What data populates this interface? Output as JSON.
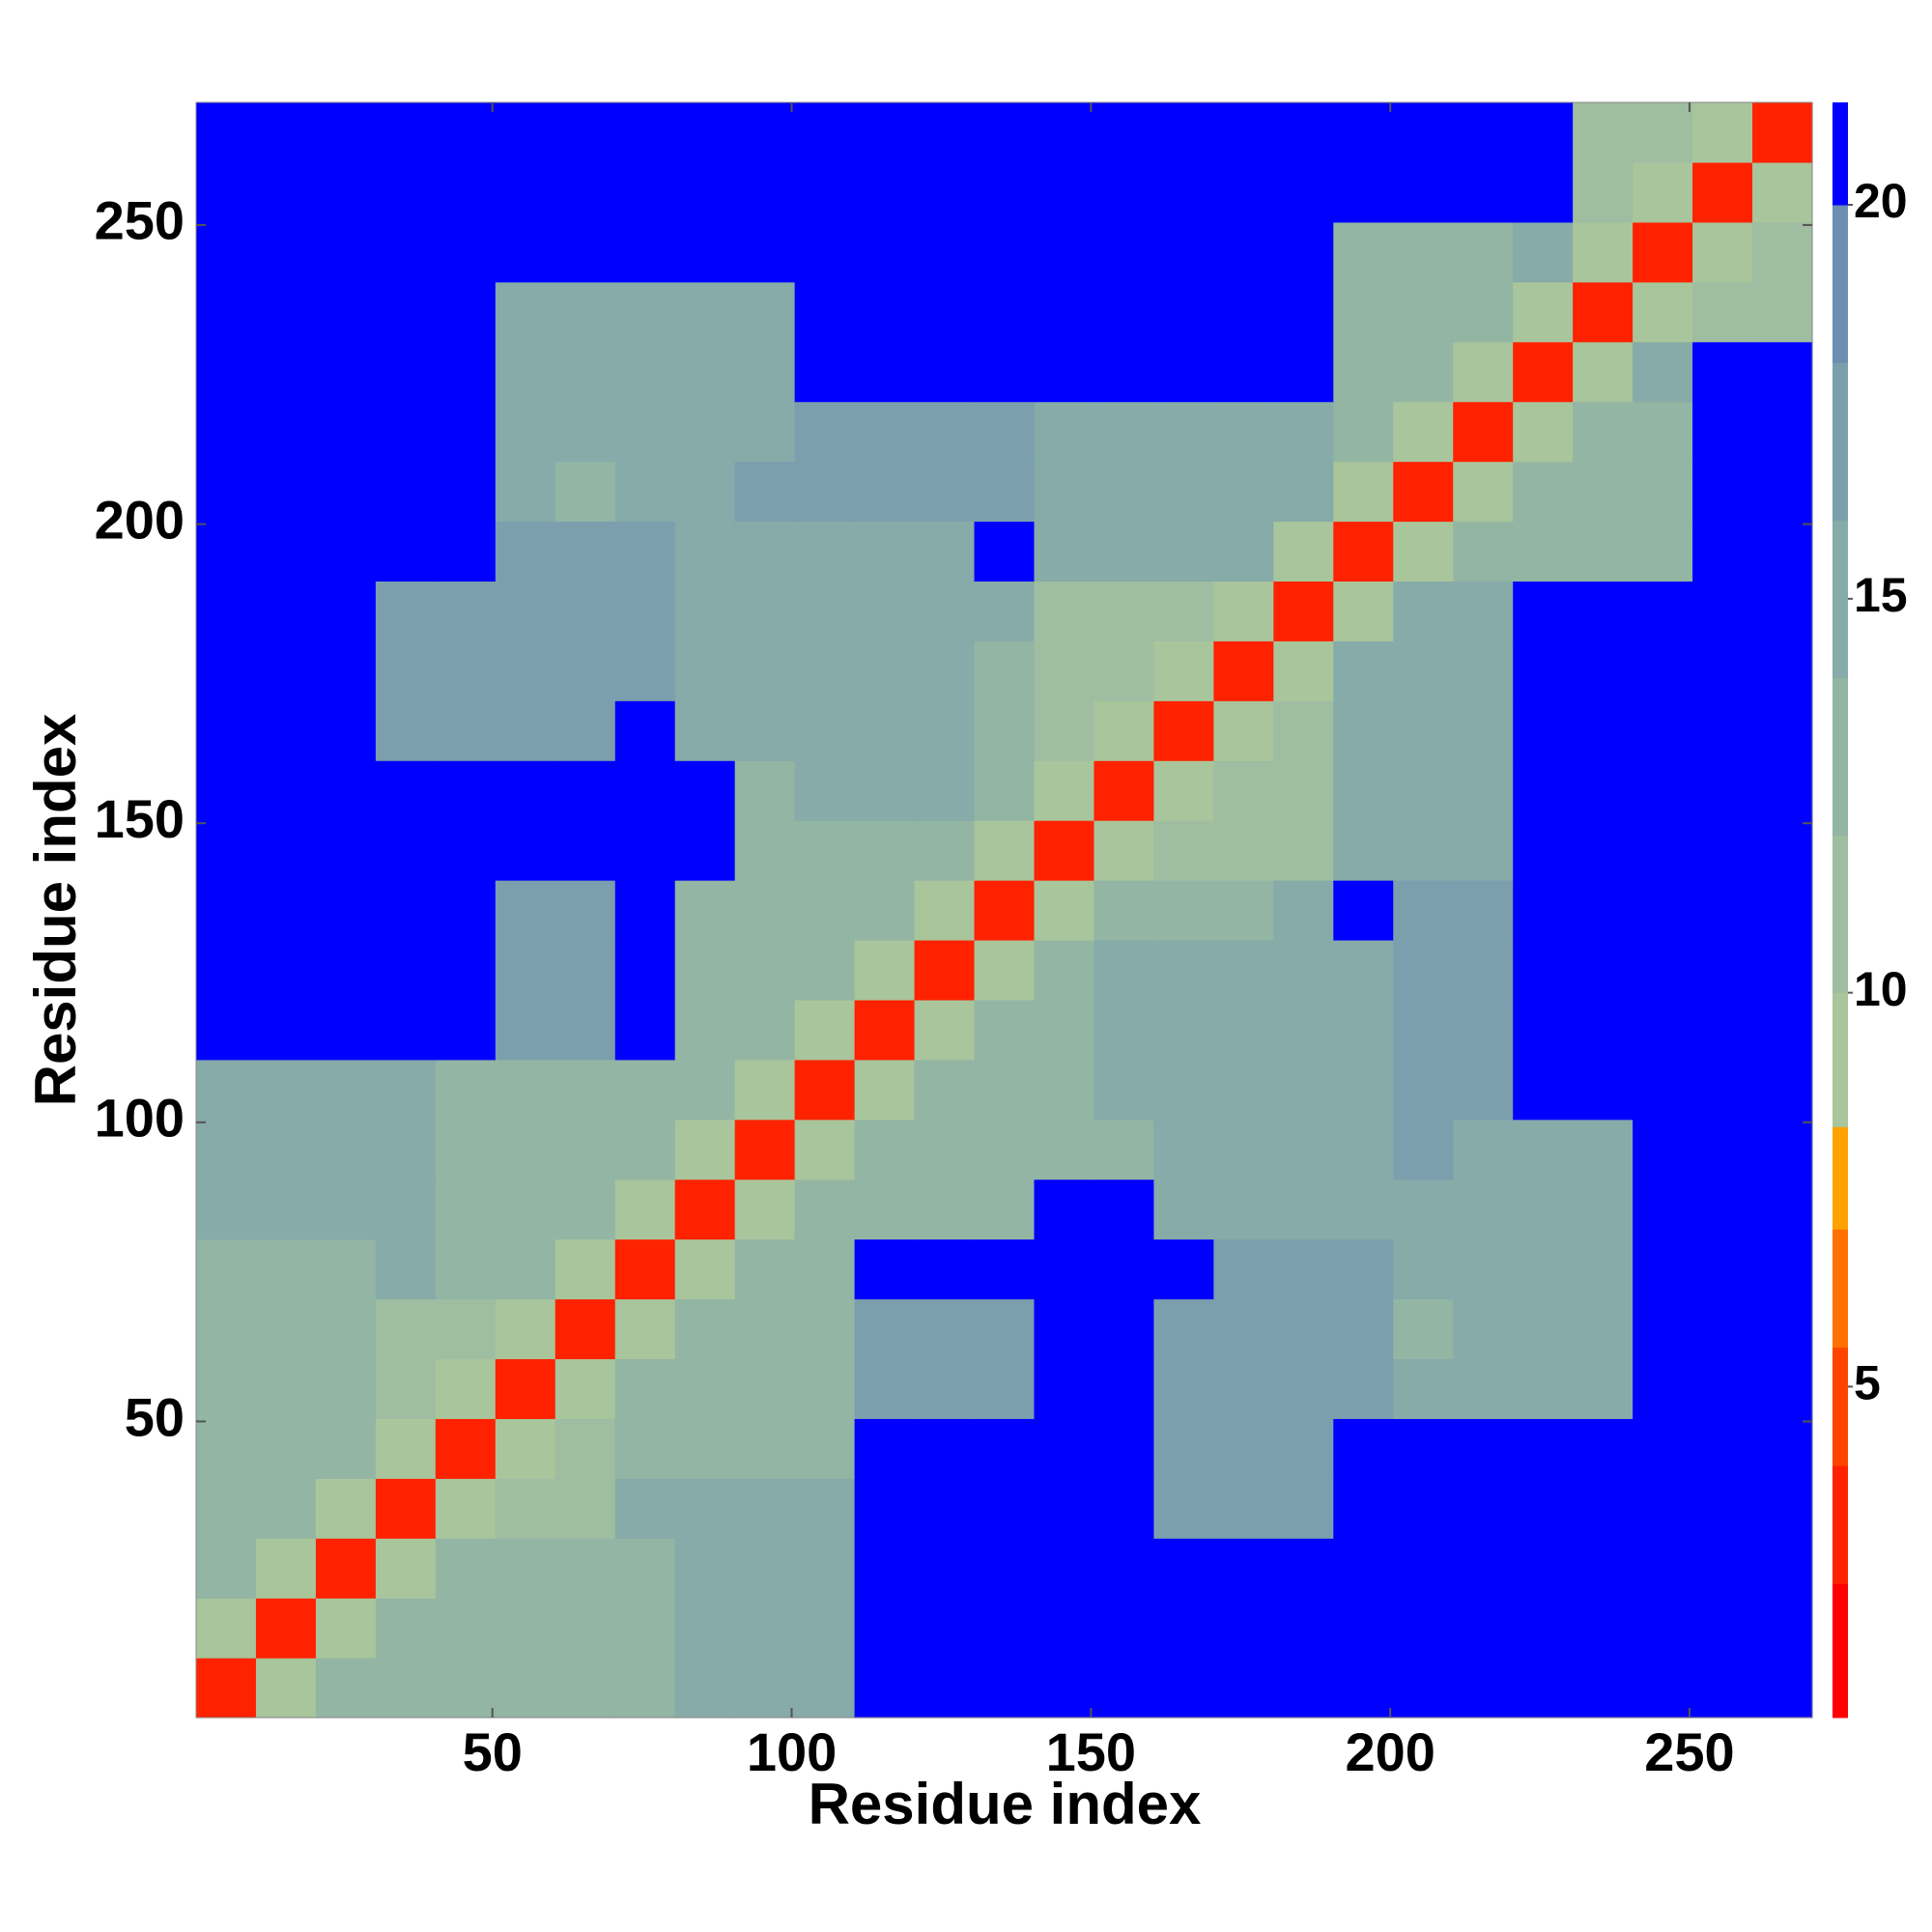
{
  "chart_data": {
    "type": "heatmap",
    "xlabel": "Residue index",
    "ylabel": "Residue index",
    "xbins": [
      0.5,
      10.5,
      20.5,
      30.5,
      40.5,
      50.5,
      60.5,
      70.5,
      80.5,
      90.5,
      100.5,
      110.5,
      120.5,
      130.5,
      140.5,
      150.5,
      160.5,
      170.5,
      180.5,
      190.5,
      200.5,
      210.5,
      220.5,
      230.5,
      240.5,
      250.5,
      260.5,
      270.5
    ],
    "ybins": [
      0.5,
      10.5,
      20.5,
      30.5,
      40.5,
      50.5,
      60.5,
      70.5,
      80.5,
      90.5,
      100.5,
      110.5,
      120.5,
      130.5,
      140.5,
      150.5,
      160.5,
      170.5,
      180.5,
      190.5,
      200.5,
      210.5,
      220.5,
      230.5,
      240.5,
      250.5,
      260.5,
      270.5
    ],
    "xlim": [
      0.5,
      270.5
    ],
    "ylim": [
      0.5,
      270.5
    ],
    "xticks": [
      50,
      100,
      150,
      200,
      250
    ],
    "yticks": [
      50,
      100,
      150,
      200,
      250
    ],
    "z": [
      [
        4,
        10,
        13,
        13,
        14,
        14,
        14,
        14,
        15,
        15,
        15,
        21,
        21,
        21,
        21,
        21,
        21,
        21,
        21,
        21,
        21,
        21,
        21,
        21,
        21,
        21,
        21
      ],
      [
        10,
        4,
        10,
        13,
        14,
        14,
        14,
        14,
        15,
        15,
        15,
        21,
        21,
        21,
        21,
        21,
        21,
        21,
        21,
        21,
        21,
        21,
        21,
        21,
        21,
        21,
        21
      ],
      [
        13,
        10,
        4,
        10,
        14,
        14,
        14,
        14,
        15,
        15,
        15,
        21,
        21,
        21,
        21,
        21,
        21,
        21,
        21,
        21,
        21,
        21,
        21,
        21,
        21,
        21,
        21
      ],
      [
        13,
        13,
        10,
        4,
        10,
        12,
        12,
        15,
        15,
        15,
        15,
        21,
        21,
        21,
        21,
        21,
        18,
        18,
        18,
        21,
        21,
        21,
        21,
        21,
        21,
        21,
        21
      ],
      [
        14,
        14,
        14,
        10,
        4,
        10,
        12,
        14,
        14,
        14,
        14,
        21,
        21,
        21,
        21,
        21,
        18,
        18,
        18,
        21,
        21,
        21,
        21,
        21,
        21,
        21,
        21
      ],
      [
        14,
        14,
        14,
        12,
        10,
        4,
        10,
        14,
        14,
        14,
        14,
        17,
        17,
        17,
        21,
        21,
        18,
        18,
        18,
        17,
        16,
        16,
        16,
        16,
        21,
        21,
        21
      ],
      [
        14,
        14,
        14,
        12,
        12,
        10,
        4,
        10,
        14,
        14,
        14,
        17,
        17,
        17,
        21,
        21,
        18,
        18,
        18,
        17,
        14,
        16,
        16,
        16,
        21,
        21,
        21
      ],
      [
        14,
        14,
        14,
        15,
        14,
        14,
        10,
        4,
        10,
        14,
        14,
        21,
        21,
        21,
        21,
        21,
        21,
        18,
        18,
        17,
        16,
        16,
        16,
        16,
        21,
        21,
        21
      ],
      [
        15,
        15,
        15,
        15,
        14,
        14,
        14,
        10,
        4,
        10,
        13,
        13,
        13,
        13,
        21,
        21,
        15,
        15,
        15,
        15,
        16,
        16,
        16,
        16,
        21,
        21,
        21
      ],
      [
        15,
        15,
        15,
        15,
        14,
        14,
        14,
        14,
        10,
        4,
        10,
        13,
        14,
        14,
        14,
        14,
        15,
        15,
        15,
        15,
        17,
        16,
        16,
        16,
        21,
        21,
        21
      ],
      [
        15,
        15,
        15,
        15,
        14,
        14,
        14,
        14,
        13,
        10,
        4,
        10,
        14,
        14,
        14,
        15,
        15,
        15,
        15,
        15,
        17,
        18,
        21,
        21,
        21,
        21,
        21
      ],
      [
        21,
        21,
        21,
        21,
        21,
        17,
        17,
        21,
        13,
        13,
        10,
        4,
        10,
        14,
        14,
        15,
        15,
        15,
        15,
        15,
        17,
        18,
        21,
        21,
        21,
        21,
        21
      ],
      [
        21,
        21,
        21,
        21,
        21,
        17,
        17,
        21,
        13,
        14,
        14,
        10,
        4,
        10,
        14,
        15,
        15,
        15,
        15,
        15,
        17,
        18,
        21,
        21,
        21,
        21,
        21
      ],
      [
        21,
        21,
        21,
        21,
        21,
        17,
        17,
        21,
        13,
        14,
        14,
        14,
        10,
        4,
        10,
        14,
        14,
        14,
        16,
        21,
        18,
        18,
        21,
        21,
        21,
        21,
        21
      ],
      [
        21,
        21,
        21,
        21,
        21,
        21,
        21,
        21,
        21,
        14,
        14,
        14,
        14,
        10,
        4,
        10,
        12,
        12,
        12,
        16,
        16,
        16,
        21,
        21,
        21,
        21,
        21
      ],
      [
        21,
        21,
        21,
        21,
        21,
        21,
        21,
        21,
        21,
        14,
        15,
        15,
        15,
        14,
        10,
        4,
        10,
        12,
        12,
        16,
        16,
        16,
        21,
        21,
        21,
        21,
        21
      ],
      [
        21,
        21,
        21,
        18,
        18,
        18,
        18,
        21,
        15,
        15,
        15,
        15,
        15,
        14,
        12,
        10,
        4,
        10,
        12,
        16,
        16,
        16,
        21,
        21,
        21,
        21,
        21
      ],
      [
        21,
        21,
        21,
        18,
        18,
        18,
        18,
        18,
        15,
        15,
        15,
        15,
        15,
        14,
        12,
        12,
        10,
        4,
        10,
        16,
        16,
        16,
        21,
        21,
        21,
        21,
        21
      ],
      [
        21,
        21,
        21,
        18,
        18,
        18,
        18,
        18,
        15,
        15,
        15,
        15,
        15,
        16,
        12,
        12,
        12,
        10,
        4,
        10,
        16,
        16,
        21,
        21,
        21,
        21,
        21
      ],
      [
        21,
        21,
        21,
        21,
        21,
        17,
        17,
        17,
        15,
        15,
        15,
        15,
        15,
        21,
        16,
        16,
        16,
        16,
        10,
        4,
        10,
        13,
        13,
        14,
        14,
        21,
        21
      ],
      [
        21,
        21,
        21,
        21,
        21,
        16,
        14,
        16,
        16,
        17,
        17,
        17,
        17,
        18,
        16,
        16,
        16,
        16,
        16,
        10,
        4,
        10,
        13,
        14,
        14,
        21,
        21
      ],
      [
        21,
        21,
        21,
        21,
        21,
        16,
        16,
        16,
        16,
        16,
        18,
        18,
        18,
        18,
        16,
        16,
        16,
        16,
        16,
        13,
        10,
        4,
        10,
        14,
        14,
        21,
        21
      ],
      [
        21,
        21,
        21,
        21,
        21,
        16,
        16,
        16,
        16,
        16,
        21,
        21,
        21,
        21,
        21,
        21,
        21,
        21,
        21,
        13,
        13,
        10,
        4,
        10,
        16,
        21,
        21
      ],
      [
        21,
        21,
        21,
        21,
        21,
        16,
        16,
        16,
        16,
        16,
        21,
        21,
        21,
        21,
        21,
        21,
        21,
        21,
        21,
        14,
        14,
        14,
        10,
        4,
        10,
        12,
        12
      ],
      [
        21,
        21,
        21,
        21,
        21,
        21,
        21,
        21,
        21,
        21,
        21,
        21,
        21,
        21,
        21,
        21,
        21,
        21,
        21,
        14,
        14,
        14,
        16,
        10,
        4,
        10,
        12
      ],
      [
        21,
        21,
        21,
        21,
        21,
        21,
        21,
        21,
        21,
        21,
        21,
        21,
        21,
        21,
        21,
        21,
        21,
        21,
        21,
        21,
        21,
        21,
        21,
        12,
        10,
        4,
        10
      ],
      [
        21,
        21,
        21,
        21,
        21,
        21,
        21,
        21,
        21,
        21,
        21,
        21,
        21,
        21,
        21,
        21,
        21,
        21,
        21,
        21,
        21,
        21,
        21,
        12,
        12,
        10,
        4
      ]
    ],
    "colorbar": {
      "lim": [
        0.8,
        21.3
      ],
      "ticks": [
        5,
        10,
        15,
        20
      ],
      "levels": [
        0.8,
        2.5,
        4,
        5.5,
        7,
        8.3,
        10,
        12,
        14,
        16,
        18,
        20,
        21.3
      ],
      "colors": [
        "#ff0000",
        "#ff2200",
        "#ff4400",
        "#ff7000",
        "#ffa200",
        "#a9c59b",
        "#9fbda0",
        "#92b5a4",
        "#86aba8",
        "#7b9fad",
        "#6a8fb2",
        "#0000ff"
      ]
    }
  }
}
